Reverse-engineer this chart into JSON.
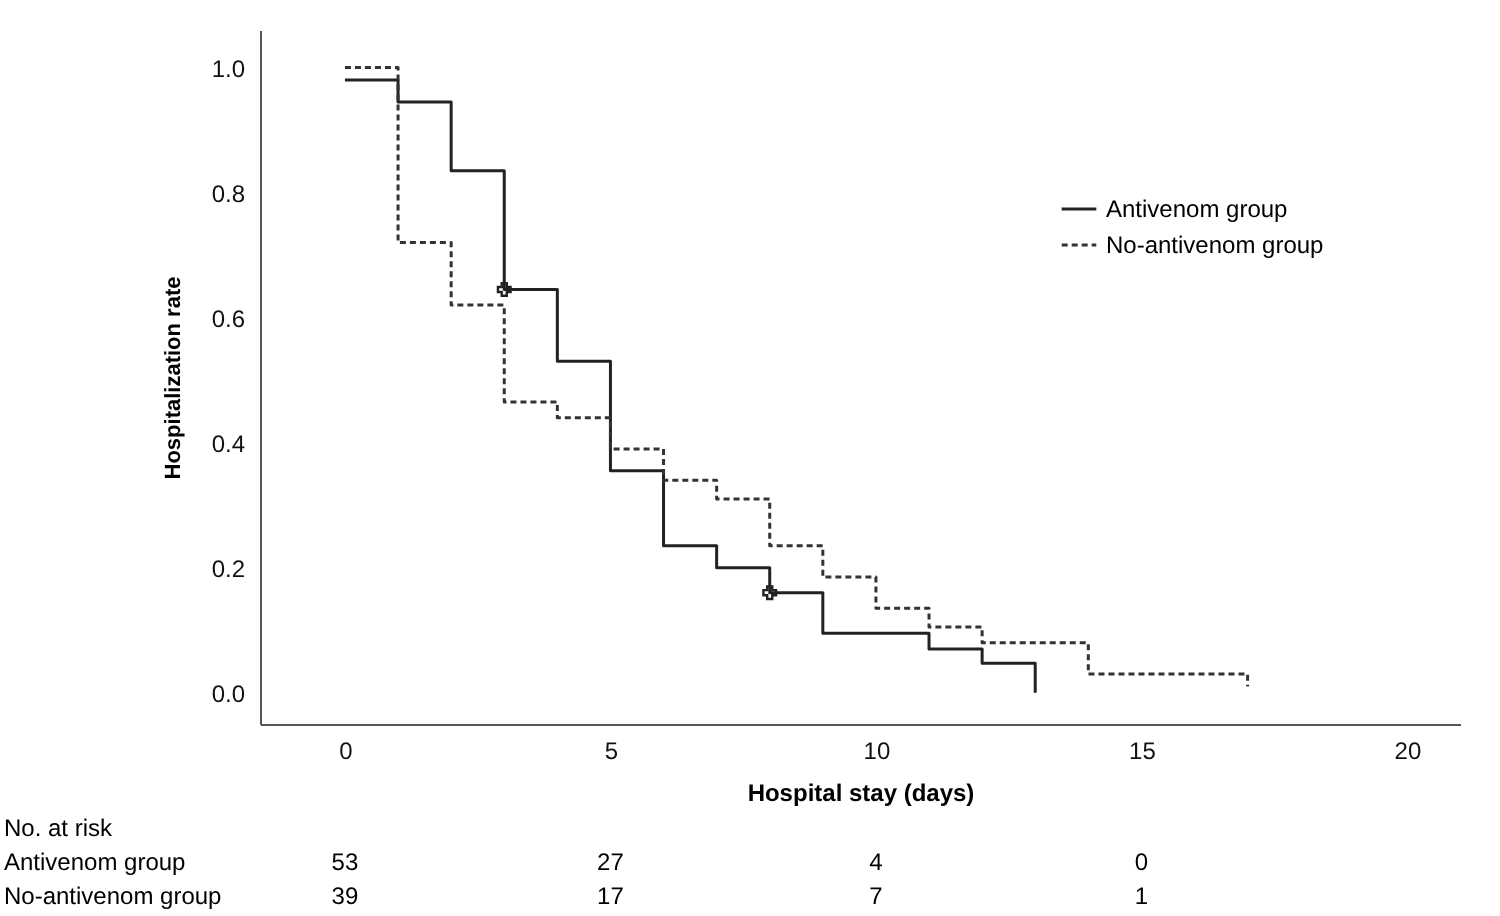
{
  "chart_data": {
    "type": "step",
    "xlabel": "Hospital stay (days)",
    "ylabel": "Hospitalization rate",
    "xlim": [
      -1.6,
      21
    ],
    "xticks": [
      0,
      5,
      10,
      15,
      20
    ],
    "ylim": [
      -0.05,
      1.06
    ],
    "yticks": [
      {
        "value": 0,
        "label": "0.0"
      },
      {
        "value": 0.2,
        "label": "0.2"
      },
      {
        "value": 0.4,
        "label": "0.4"
      },
      {
        "value": 0.6,
        "label": "0.6"
      },
      {
        "value": 0.8,
        "label": "0.8"
      },
      {
        "value": 1,
        "label": "1.0"
      }
    ],
    "grid": false,
    "legend": "top right",
    "series": [
      {
        "name": "Antivenom group",
        "color": "#222222",
        "line_style": "solid",
        "x": [
          0,
          1,
          2,
          3,
          4,
          5,
          6,
          7,
          8,
          9,
          11,
          12,
          13
        ],
        "values": [
          0.98,
          0.945,
          0.835,
          0.645,
          0.53,
          0.355,
          0.235,
          0.2,
          0.16,
          0.095,
          0.07,
          0.047,
          0.0
        ]
      },
      {
        "name": "No-antivenom group",
        "color": "#333333",
        "line_style": "dashed",
        "x": [
          0,
          1,
          2,
          3,
          4,
          5,
          6,
          7,
          8,
          9,
          10,
          11,
          12,
          14,
          17
        ],
        "values": [
          1.0,
          0.72,
          0.62,
          0.465,
          0.44,
          0.39,
          0.34,
          0.31,
          0.235,
          0.185,
          0.135,
          0.105,
          0.08,
          0.03,
          0.01
        ]
      },
      {
        "type": "scatter",
        "marker": "cross",
        "color": "#222222",
        "x": [
          3,
          8
        ],
        "values": [
          0.645,
          0.16
        ]
      }
    ],
    "annotations": [
      "No. at risk",
      "Antivenom group",
      "53",
      "27",
      "4",
      "0",
      "No-antivenom group",
      "39",
      "17",
      "7",
      "1"
    ]
  }
}
